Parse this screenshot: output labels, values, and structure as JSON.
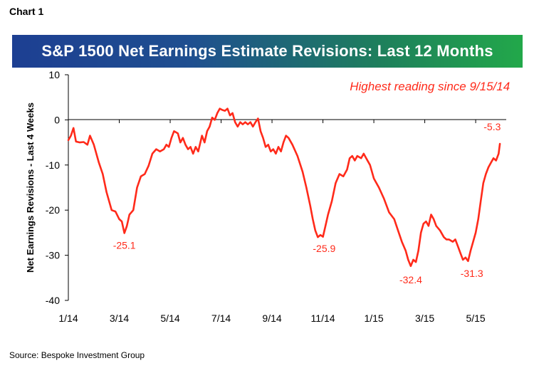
{
  "chart_label": "Chart 1",
  "source": "Source: Bespoke Investment Group",
  "chart_data": {
    "type": "line",
    "title": "S&P 1500 Net Earnings Estimate Revisions: Last 12 Months",
    "ylabel": "Net Earnings  Revisions - Last 4 Weeks",
    "xlabel": "",
    "ylim": [
      -40,
      10
    ],
    "yticks": [
      10,
      0,
      -10,
      -20,
      -30,
      -40
    ],
    "xlim": [
      0,
      17.2
    ],
    "xticks": [
      {
        "pos": 0,
        "label": "1/14"
      },
      {
        "pos": 2,
        "label": "3/14"
      },
      {
        "pos": 4,
        "label": "5/14"
      },
      {
        "pos": 6,
        "label": "7/14"
      },
      {
        "pos": 8,
        "label": "9/14"
      },
      {
        "pos": 10,
        "label": "11/14"
      },
      {
        "pos": 12,
        "label": "1/15"
      },
      {
        "pos": 14,
        "label": "3/15"
      },
      {
        "pos": 16,
        "label": "5/15"
      }
    ],
    "line_color": "#ff2a1a",
    "series": [
      {
        "name": "Net Earnings Revisions",
        "points": [
          [
            0.0,
            -4.5
          ],
          [
            0.1,
            -3.5
          ],
          [
            0.2,
            -1.8
          ],
          [
            0.3,
            -4.8
          ],
          [
            0.45,
            -5.0
          ],
          [
            0.6,
            -4.9
          ],
          [
            0.75,
            -5.5
          ],
          [
            0.85,
            -3.5
          ],
          [
            1.0,
            -5.5
          ],
          [
            1.2,
            -9.5
          ],
          [
            1.35,
            -12.0
          ],
          [
            1.5,
            -16.0
          ],
          [
            1.6,
            -18.0
          ],
          [
            1.7,
            -20.0
          ],
          [
            1.85,
            -20.3
          ],
          [
            2.0,
            -22.0
          ],
          [
            2.1,
            -22.5
          ],
          [
            2.2,
            -25.1
          ],
          [
            2.3,
            -23.5
          ],
          [
            2.4,
            -21.0
          ],
          [
            2.55,
            -20.0
          ],
          [
            2.7,
            -15.0
          ],
          [
            2.85,
            -12.5
          ],
          [
            3.0,
            -12.0
          ],
          [
            3.15,
            -10.2
          ],
          [
            3.3,
            -7.5
          ],
          [
            3.45,
            -6.5
          ],
          [
            3.6,
            -7.0
          ],
          [
            3.75,
            -6.5
          ],
          [
            3.85,
            -5.5
          ],
          [
            3.95,
            -6.0
          ],
          [
            4.05,
            -4.0
          ],
          [
            4.15,
            -2.5
          ],
          [
            4.3,
            -3.0
          ],
          [
            4.4,
            -5.0
          ],
          [
            4.5,
            -4.0
          ],
          [
            4.6,
            -5.5
          ],
          [
            4.7,
            -6.5
          ],
          [
            4.8,
            -6.0
          ],
          [
            4.9,
            -7.5
          ],
          [
            5.0,
            -6.0
          ],
          [
            5.1,
            -7.0
          ],
          [
            5.25,
            -3.5
          ],
          [
            5.35,
            -5.0
          ],
          [
            5.45,
            -2.5
          ],
          [
            5.55,
            -1.5
          ],
          [
            5.65,
            0.5
          ],
          [
            5.75,
            0.0
          ],
          [
            5.85,
            1.5
          ],
          [
            5.95,
            2.5
          ],
          [
            6.05,
            2.2
          ],
          [
            6.15,
            2.0
          ],
          [
            6.25,
            2.5
          ],
          [
            6.35,
            1.0
          ],
          [
            6.45,
            1.5
          ],
          [
            6.55,
            -0.5
          ],
          [
            6.65,
            -1.5
          ],
          [
            6.75,
            -0.5
          ],
          [
            6.85,
            -1.0
          ],
          [
            6.95,
            -0.5
          ],
          [
            7.05,
            -1.0
          ],
          [
            7.15,
            -0.5
          ],
          [
            7.25,
            -1.5
          ],
          [
            7.35,
            -0.5
          ],
          [
            7.45,
            0.3
          ],
          [
            7.55,
            -2.5
          ],
          [
            7.65,
            -4.0
          ],
          [
            7.75,
            -6.0
          ],
          [
            7.85,
            -5.5
          ],
          [
            7.95,
            -7.0
          ],
          [
            8.05,
            -6.5
          ],
          [
            8.15,
            -7.5
          ],
          [
            8.25,
            -6.0
          ],
          [
            8.35,
            -7.0
          ],
          [
            8.45,
            -5.0
          ],
          [
            8.55,
            -3.5
          ],
          [
            8.65,
            -4.0
          ],
          [
            8.8,
            -5.5
          ],
          [
            9.0,
            -8.0
          ],
          [
            9.2,
            -11.5
          ],
          [
            9.35,
            -15.0
          ],
          [
            9.5,
            -19.0
          ],
          [
            9.6,
            -22.0
          ],
          [
            9.7,
            -24.5
          ],
          [
            9.8,
            -26.0
          ],
          [
            9.9,
            -25.5
          ],
          [
            10.0,
            -25.9
          ],
          [
            10.1,
            -23.5
          ],
          [
            10.2,
            -21.0
          ],
          [
            10.35,
            -18.0
          ],
          [
            10.5,
            -14.0
          ],
          [
            10.65,
            -12.0
          ],
          [
            10.8,
            -12.5
          ],
          [
            10.95,
            -11.0
          ],
          [
            11.05,
            -8.5
          ],
          [
            11.15,
            -8.0
          ],
          [
            11.25,
            -9.0
          ],
          [
            11.35,
            -8.0
          ],
          [
            11.5,
            -8.5
          ],
          [
            11.6,
            -7.5
          ],
          [
            11.7,
            -8.5
          ],
          [
            11.85,
            -10.0
          ],
          [
            12.0,
            -13.0
          ],
          [
            12.2,
            -15.0
          ],
          [
            12.4,
            -17.5
          ],
          [
            12.6,
            -20.5
          ],
          [
            12.8,
            -22.0
          ],
          [
            12.95,
            -24.5
          ],
          [
            13.1,
            -27.0
          ],
          [
            13.25,
            -29.0
          ],
          [
            13.35,
            -31.0
          ],
          [
            13.45,
            -32.4
          ],
          [
            13.55,
            -31.0
          ],
          [
            13.65,
            -31.5
          ],
          [
            13.75,
            -29.0
          ],
          [
            13.85,
            -25.0
          ],
          [
            13.95,
            -23.0
          ],
          [
            14.05,
            -22.5
          ],
          [
            14.15,
            -23.5
          ],
          [
            14.25,
            -21.0
          ],
          [
            14.35,
            -22.0
          ],
          [
            14.45,
            -23.5
          ],
          [
            14.6,
            -24.5
          ],
          [
            14.75,
            -26.0
          ],
          [
            14.85,
            -26.5
          ],
          [
            14.95,
            -26.5
          ],
          [
            15.1,
            -27.0
          ],
          [
            15.2,
            -26.5
          ],
          [
            15.3,
            -28.0
          ],
          [
            15.4,
            -29.5
          ],
          [
            15.5,
            -31.0
          ],
          [
            15.6,
            -30.5
          ],
          [
            15.7,
            -31.3
          ],
          [
            15.8,
            -29.0
          ],
          [
            15.9,
            -27.0
          ],
          [
            16.0,
            -25.0
          ],
          [
            16.1,
            -22.0
          ],
          [
            16.2,
            -18.0
          ],
          [
            16.3,
            -14.0
          ],
          [
            16.4,
            -12.0
          ],
          [
            16.5,
            -10.5
          ],
          [
            16.6,
            -9.5
          ],
          [
            16.7,
            -8.5
          ],
          [
            16.8,
            -9.0
          ],
          [
            16.9,
            -7.5
          ],
          [
            16.95,
            -5.3
          ]
        ]
      }
    ],
    "annotations": [
      {
        "text": "Highest reading since 9/15/14",
        "x": 14.2,
        "y": 6.5,
        "anchor": "middle",
        "italic": true,
        "size": 17
      },
      {
        "text": "-25.1",
        "x": 2.2,
        "y": -28.6,
        "anchor": "middle"
      },
      {
        "text": "-25.9",
        "x": 10.05,
        "y": -29.3,
        "anchor": "middle"
      },
      {
        "text": "-32.4",
        "x": 13.45,
        "y": -36.2,
        "anchor": "middle"
      },
      {
        "text": "-31.3",
        "x": 15.85,
        "y": -34.8,
        "anchor": "middle"
      },
      {
        "text": "-5.3",
        "x": 16.65,
        "y": -2.3,
        "anchor": "middle"
      }
    ]
  }
}
